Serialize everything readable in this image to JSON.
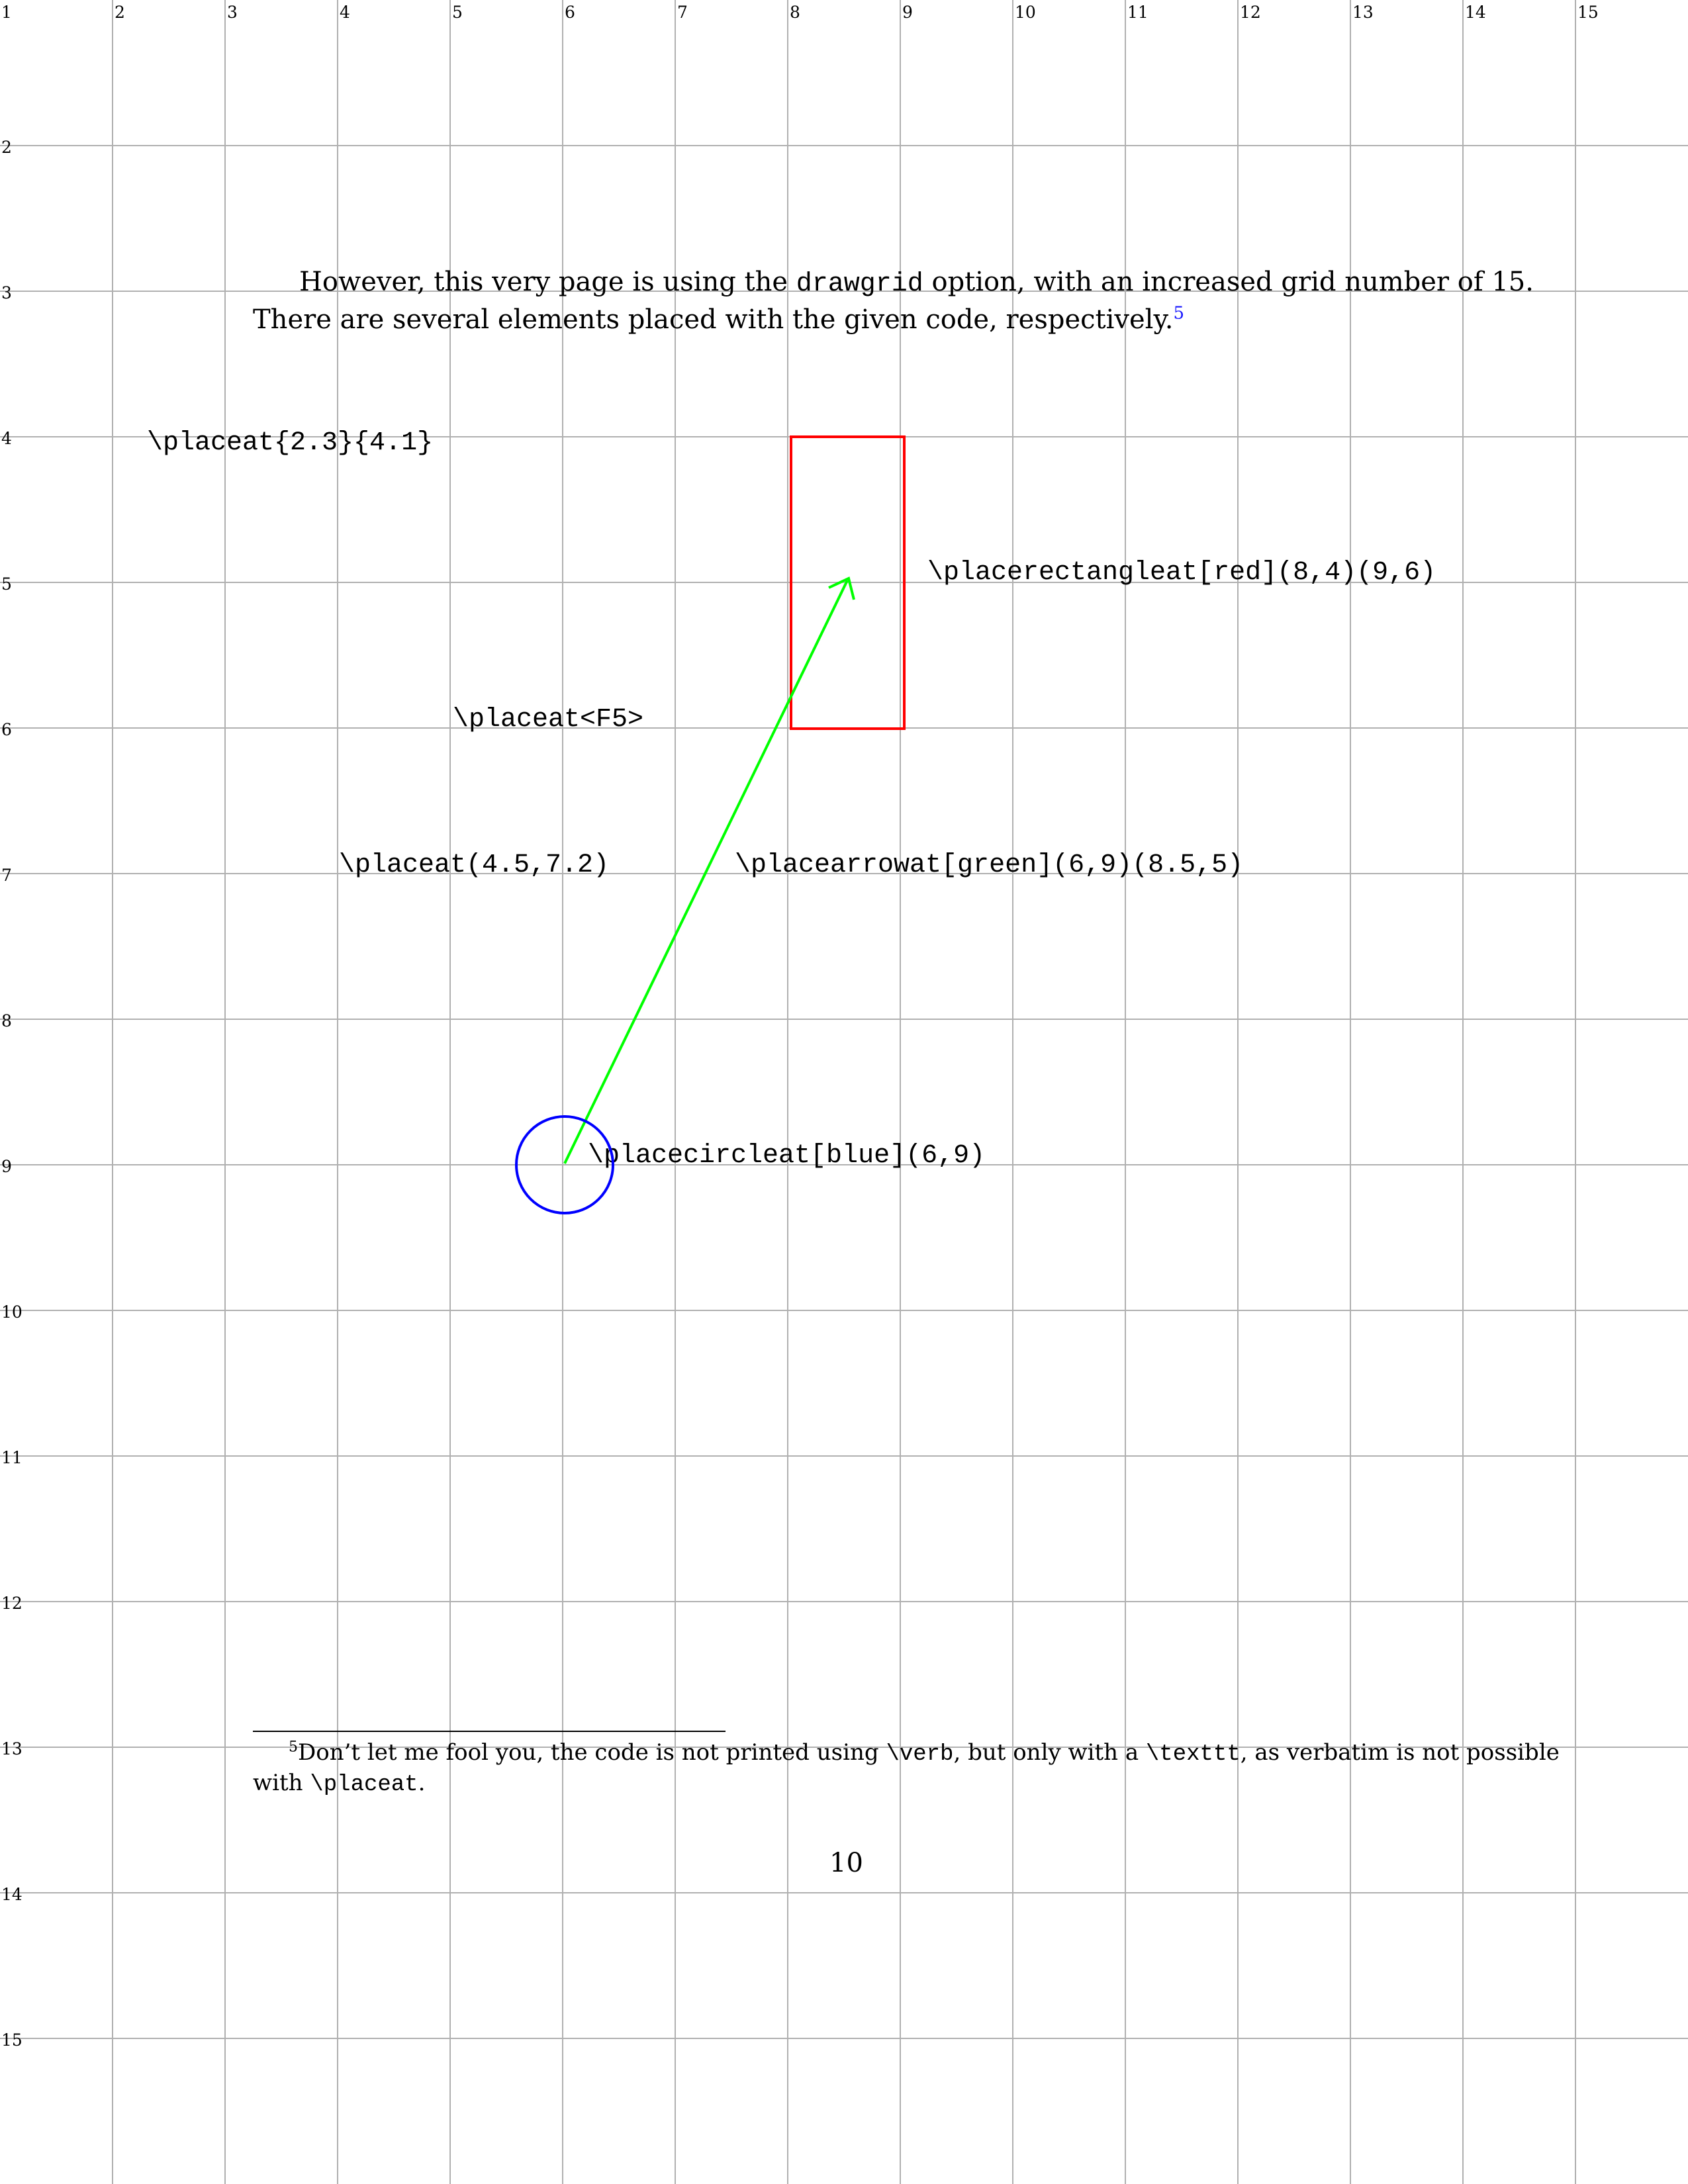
{
  "grid": {
    "number": 15,
    "x_ticks": [
      "1",
      "2",
      "3",
      "4",
      "5",
      "6",
      "7",
      "8",
      "9",
      "10",
      "11",
      "12",
      "13",
      "14",
      "15"
    ],
    "y_ticks": [
      "1",
      "2",
      "3",
      "4",
      "5",
      "6",
      "7",
      "8",
      "9",
      "10",
      "11",
      "12",
      "13",
      "14",
      "15"
    ]
  },
  "paragraph": {
    "text_before": "However, this very page is using the ",
    "code": "drawgrid",
    "text_after": " option, with an increased grid number of 15.",
    "line2": "There are several elements placed with the given code, respectively.",
    "footnote_mark": "5"
  },
  "labels": {
    "placeat_a": "\\placeat{2.3}{4.1}",
    "placerectangleat": "\\placerectangleat[red](8,4)(9,6)",
    "placeat_b": "\\placeat<F5>",
    "placeat_c": "\\placeat(4.5,7.2)",
    "placearrowat": "\\placearrowat[green](6,9)(8.5,5)",
    "placecircleat": "\\placecircleat[blue](6,9)"
  },
  "shapes": {
    "rectangle_color": "#ff0000",
    "arrow_color": "#00ff00",
    "circle_color": "#0000ff",
    "grid_color": "#b0b0b0"
  },
  "footnote": {
    "mark": "5",
    "t1": "Don’t let me fool you, the code is not printed using ",
    "c1": "\\verb",
    "t2": ", but only with a ",
    "c2": "\\texttt",
    "t3": ", as verbatim is not possible",
    "t4": "with ",
    "c3": "\\placeat",
    "t5": "."
  },
  "page_number": "10"
}
